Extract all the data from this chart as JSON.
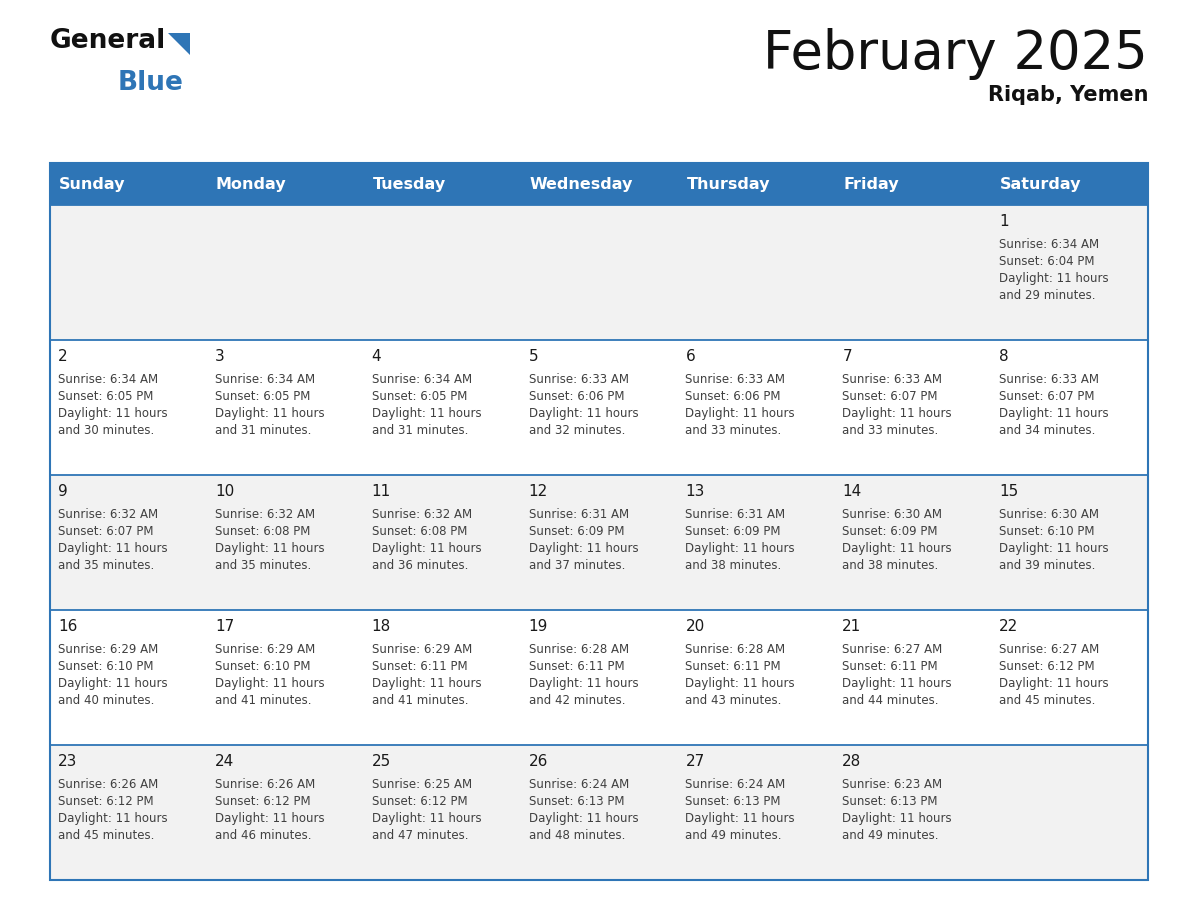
{
  "title": "February 2025",
  "subtitle": "Riqab, Yemen",
  "header_color": "#2E75B6",
  "header_text_color": "#FFFFFF",
  "days_of_week": [
    "Sunday",
    "Monday",
    "Tuesday",
    "Wednesday",
    "Thursday",
    "Friday",
    "Saturday"
  ],
  "bg_color": "#FFFFFF",
  "row0_color": "#F2F2F2",
  "row1_color": "#FFFFFF",
  "cell_border_color": "#2E75B6",
  "text_color": "#404040",
  "day_num_color": "#1a1a1a",
  "calendar_data": [
    [
      null,
      null,
      null,
      null,
      null,
      null,
      {
        "day": 1,
        "sunrise": "6:34 AM",
        "sunset": "6:04 PM",
        "daylight": "11 hours and 29 minutes"
      }
    ],
    [
      {
        "day": 2,
        "sunrise": "6:34 AM",
        "sunset": "6:05 PM",
        "daylight": "11 hours and 30 minutes"
      },
      {
        "day": 3,
        "sunrise": "6:34 AM",
        "sunset": "6:05 PM",
        "daylight": "11 hours and 31 minutes"
      },
      {
        "day": 4,
        "sunrise": "6:34 AM",
        "sunset": "6:05 PM",
        "daylight": "11 hours and 31 minutes"
      },
      {
        "day": 5,
        "sunrise": "6:33 AM",
        "sunset": "6:06 PM",
        "daylight": "11 hours and 32 minutes"
      },
      {
        "day": 6,
        "sunrise": "6:33 AM",
        "sunset": "6:06 PM",
        "daylight": "11 hours and 33 minutes"
      },
      {
        "day": 7,
        "sunrise": "6:33 AM",
        "sunset": "6:07 PM",
        "daylight": "11 hours and 33 minutes"
      },
      {
        "day": 8,
        "sunrise": "6:33 AM",
        "sunset": "6:07 PM",
        "daylight": "11 hours and 34 minutes"
      }
    ],
    [
      {
        "day": 9,
        "sunrise": "6:32 AM",
        "sunset": "6:07 PM",
        "daylight": "11 hours and 35 minutes"
      },
      {
        "day": 10,
        "sunrise": "6:32 AM",
        "sunset": "6:08 PM",
        "daylight": "11 hours and 35 minutes"
      },
      {
        "day": 11,
        "sunrise": "6:32 AM",
        "sunset": "6:08 PM",
        "daylight": "11 hours and 36 minutes"
      },
      {
        "day": 12,
        "sunrise": "6:31 AM",
        "sunset": "6:09 PM",
        "daylight": "11 hours and 37 minutes"
      },
      {
        "day": 13,
        "sunrise": "6:31 AM",
        "sunset": "6:09 PM",
        "daylight": "11 hours and 38 minutes"
      },
      {
        "day": 14,
        "sunrise": "6:30 AM",
        "sunset": "6:09 PM",
        "daylight": "11 hours and 38 minutes"
      },
      {
        "day": 15,
        "sunrise": "6:30 AM",
        "sunset": "6:10 PM",
        "daylight": "11 hours and 39 minutes"
      }
    ],
    [
      {
        "day": 16,
        "sunrise": "6:29 AM",
        "sunset": "6:10 PM",
        "daylight": "11 hours and 40 minutes"
      },
      {
        "day": 17,
        "sunrise": "6:29 AM",
        "sunset": "6:10 PM",
        "daylight": "11 hours and 41 minutes"
      },
      {
        "day": 18,
        "sunrise": "6:29 AM",
        "sunset": "6:11 PM",
        "daylight": "11 hours and 41 minutes"
      },
      {
        "day": 19,
        "sunrise": "6:28 AM",
        "sunset": "6:11 PM",
        "daylight": "11 hours and 42 minutes"
      },
      {
        "day": 20,
        "sunrise": "6:28 AM",
        "sunset": "6:11 PM",
        "daylight": "11 hours and 43 minutes"
      },
      {
        "day": 21,
        "sunrise": "6:27 AM",
        "sunset": "6:11 PM",
        "daylight": "11 hours and 44 minutes"
      },
      {
        "day": 22,
        "sunrise": "6:27 AM",
        "sunset": "6:12 PM",
        "daylight": "11 hours and 45 minutes"
      }
    ],
    [
      {
        "day": 23,
        "sunrise": "6:26 AM",
        "sunset": "6:12 PM",
        "daylight": "11 hours and 45 minutes"
      },
      {
        "day": 24,
        "sunrise": "6:26 AM",
        "sunset": "6:12 PM",
        "daylight": "11 hours and 46 minutes"
      },
      {
        "day": 25,
        "sunrise": "6:25 AM",
        "sunset": "6:12 PM",
        "daylight": "11 hours and 47 minutes"
      },
      {
        "day": 26,
        "sunrise": "6:24 AM",
        "sunset": "6:13 PM",
        "daylight": "11 hours and 48 minutes"
      },
      {
        "day": 27,
        "sunrise": "6:24 AM",
        "sunset": "6:13 PM",
        "daylight": "11 hours and 49 minutes"
      },
      {
        "day": 28,
        "sunrise": "6:23 AM",
        "sunset": "6:13 PM",
        "daylight": "11 hours and 49 minutes"
      },
      null
    ]
  ]
}
